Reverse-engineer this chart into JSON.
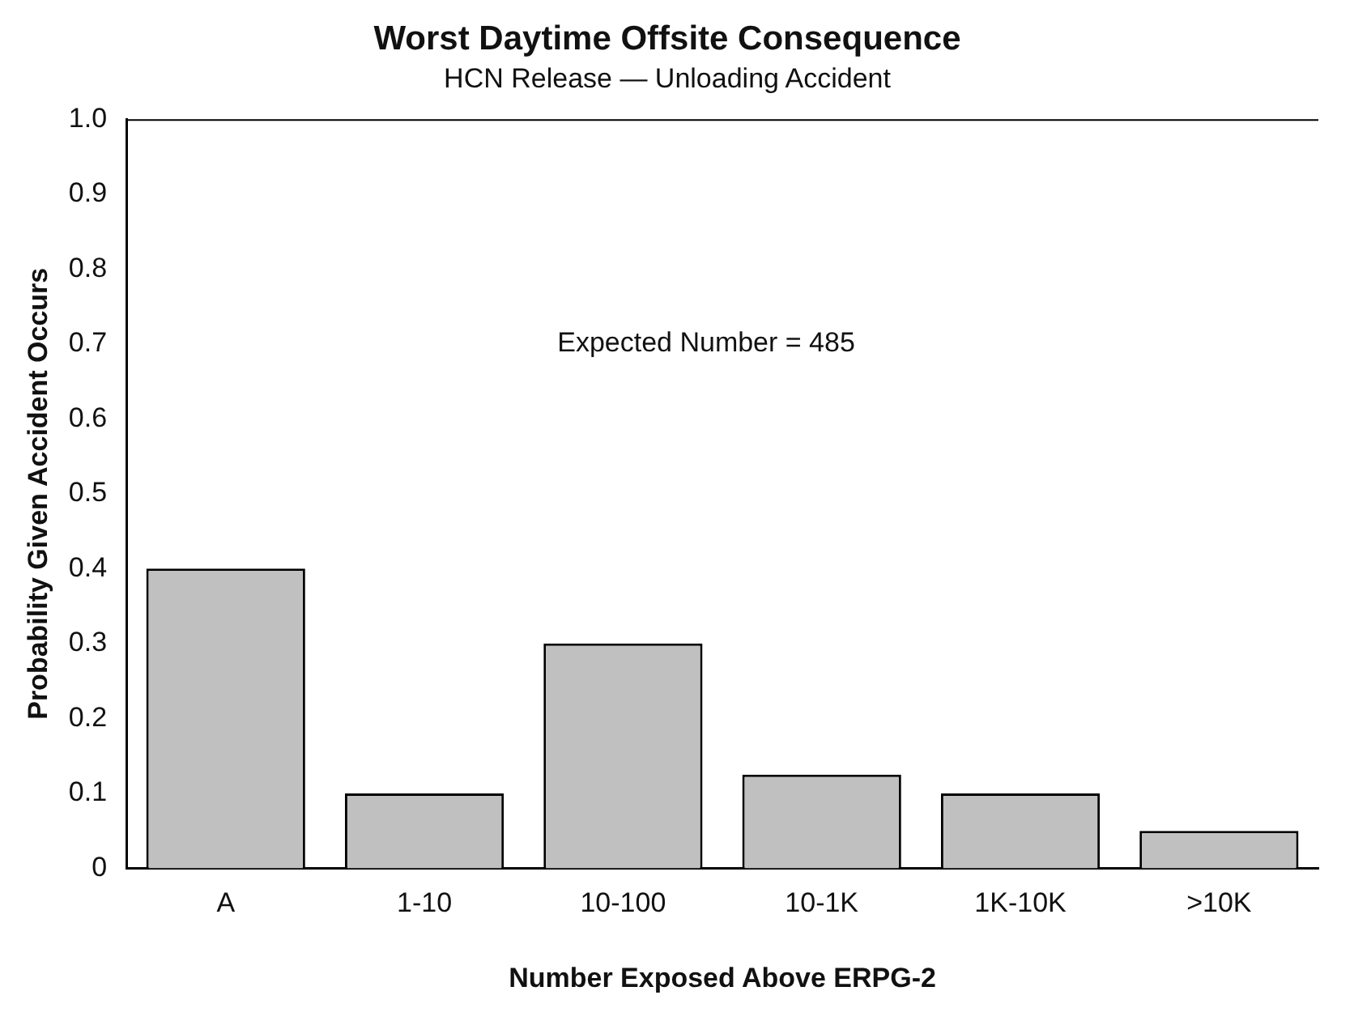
{
  "chart_data": {
    "type": "bar",
    "title": "Worst Daytime Offsite Consequence",
    "subtitle": "HCN Release — Unloading Accident",
    "xlabel": "Number Exposed Above ERPG-2",
    "ylabel": "Probability Given Accident Occurs",
    "categories": [
      "A",
      "1-10",
      "10-100",
      "10-1K",
      "1K-10K",
      ">10K"
    ],
    "values": [
      0.4,
      0.1,
      0.3,
      0.125,
      0.1,
      0.05
    ],
    "color": "#c0c0c0",
    "ylim": [
      0,
      1
    ],
    "yticks": [
      0,
      0.1,
      0.2,
      0.3,
      0.4,
      0.5,
      0.6,
      0.7,
      0.8,
      0.9,
      {
        "value": 1,
        "label": "1.0"
      }
    ],
    "grid": false,
    "legend": false,
    "annotations": [
      "Expected Number = 485"
    ]
  }
}
